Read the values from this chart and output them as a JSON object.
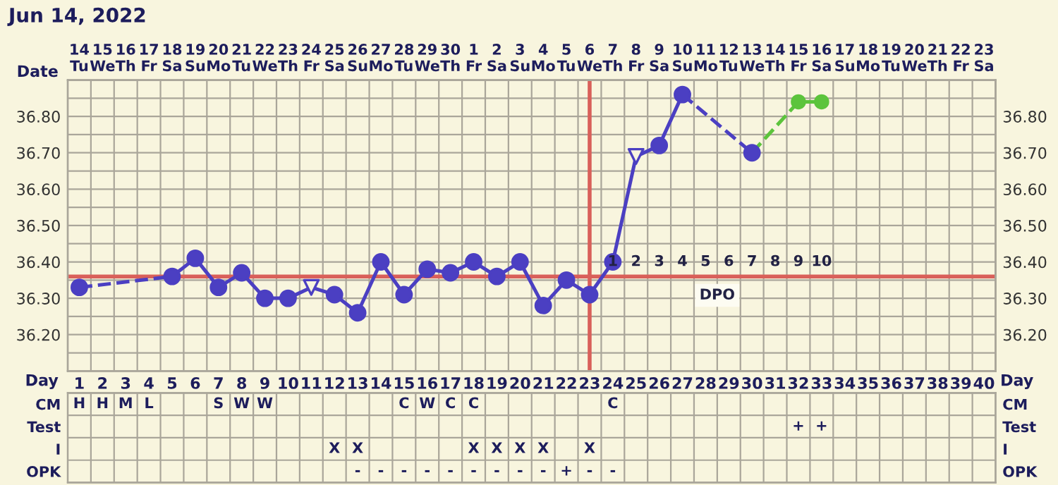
{
  "chart_data": [
    {
      "type": "line",
      "title": "Jun 14, 2022",
      "xlabel": "Day",
      "x2label": "Date",
      "grid": true,
      "legend": false,
      "xlim": [
        0.5,
        40.5
      ],
      "xticks": [
        1,
        2,
        3,
        4,
        5,
        6,
        7,
        8,
        9,
        10,
        11,
        12,
        13,
        14,
        15,
        16,
        17,
        18,
        19,
        20,
        21,
        22,
        23,
        24,
        25,
        26,
        27,
        28,
        29,
        30,
        31,
        32,
        33,
        34,
        35,
        36,
        37,
        38,
        39,
        40
      ],
      "x2lim": [
        "2022-06-13T12:00",
        "2022-07-23T12:00"
      ],
      "x2ticks": [
        {
          "value": "2022-06-14",
          "label": "14\nTu"
        },
        {
          "value": "2022-06-15",
          "label": "15\nWe"
        },
        {
          "value": "2022-06-16",
          "label": "16\nTh"
        },
        {
          "value": "2022-06-17",
          "label": "17\nFr"
        },
        {
          "value": "2022-06-18",
          "label": "18\nSa"
        },
        {
          "value": "2022-06-19",
          "label": "19\nSu"
        },
        {
          "value": "2022-06-20",
          "label": "20\nMo"
        },
        {
          "value": "2022-06-21",
          "label": "21\nTu"
        },
        {
          "value": "2022-06-22",
          "label": "22\nWe"
        },
        {
          "value": "2022-06-23",
          "label": "23\nTh"
        },
        {
          "value": "2022-06-24",
          "label": "24\nFr"
        },
        {
          "value": "2022-06-25",
          "label": "25\nSa"
        },
        {
          "value": "2022-06-26",
          "label": "26\nSu"
        },
        {
          "value": "2022-06-27",
          "label": "27\nMo"
        },
        {
          "value": "2022-06-28",
          "label": "28\nTu"
        },
        {
          "value": "2022-06-29",
          "label": "29\nWe"
        },
        {
          "value": "2022-06-30",
          "label": "30\nTh"
        },
        {
          "value": "2022-07-01",
          "label": "1\nFr"
        },
        {
          "value": "2022-07-02",
          "label": "2\nSa"
        },
        {
          "value": "2022-07-03",
          "label": "3\nSu"
        },
        {
          "value": "2022-07-04",
          "label": "4\nMo"
        },
        {
          "value": "2022-07-05",
          "label": "5\nTu"
        },
        {
          "value": "2022-07-06",
          "label": "6\nWe"
        },
        {
          "value": "2022-07-07",
          "label": "7\nTh"
        },
        {
          "value": "2022-07-08",
          "label": "8\nFr"
        },
        {
          "value": "2022-07-09",
          "label": "9\nSa"
        },
        {
          "value": "2022-07-10",
          "label": "10\nSu"
        },
        {
          "value": "2022-07-11",
          "label": "11\nMo"
        },
        {
          "value": "2022-07-12",
          "label": "12\nTu"
        },
        {
          "value": "2022-07-13",
          "label": "13\nWe"
        },
        {
          "value": "2022-07-14",
          "label": "14\nTh"
        },
        {
          "value": "2022-07-15",
          "label": "15\nFr"
        },
        {
          "value": "2022-07-16",
          "label": "16\nSa"
        },
        {
          "value": "2022-07-17",
          "label": "17\nSu"
        },
        {
          "value": "2022-07-18",
          "label": "18\nMo"
        },
        {
          "value": "2022-07-19",
          "label": "19\nTu"
        },
        {
          "value": "2022-07-20",
          "label": "20\nWe"
        },
        {
          "value": "2022-07-21",
          "label": "21\nTh"
        },
        {
          "value": "2022-07-22",
          "label": "22\nFr"
        },
        {
          "value": "2022-07-23",
          "label": "23\nSa"
        }
      ],
      "ylim": [
        36.1,
        36.9
      ],
      "yticks": [
        {
          "value": 36.1,
          "label": null
        },
        {
          "value": 36.15,
          "label": null
        },
        {
          "value": 36.2,
          "label": "36.20"
        },
        {
          "value": 36.25,
          "label": null
        },
        {
          "value": 36.3,
          "label": "36.30"
        },
        {
          "value": 36.35,
          "label": null
        },
        {
          "value": 36.4,
          "label": "36.40"
        },
        {
          "value": 36.45,
          "label": null
        },
        {
          "value": 36.5,
          "label": "36.50"
        },
        {
          "value": 36.55,
          "label": null
        },
        {
          "value": 36.6,
          "label": "36.60"
        },
        {
          "value": 36.65,
          "label": null
        },
        {
          "value": 36.7,
          "label": "36.70"
        },
        {
          "value": 36.75,
          "label": null
        },
        {
          "value": 36.8,
          "label": "36.80"
        },
        {
          "value": 36.85,
          "label": null
        },
        {
          "value": 36.9,
          "label": null
        }
      ],
      "y2lim": [
        36.1,
        36.9
      ],
      "y2ticks": [
        {
          "value": 36.1,
          "label": null
        },
        {
          "value": 36.15,
          "label": null
        },
        {
          "value": 36.2,
          "label": "36.20"
        },
        {
          "value": 36.25,
          "label": null
        },
        {
          "value": 36.3,
          "label": "36.30"
        },
        {
          "value": 36.35,
          "label": null
        },
        {
          "value": 36.4,
          "label": "36.40"
        },
        {
          "value": 36.45,
          "label": null
        },
        {
          "value": 36.5,
          "label": "36.50"
        },
        {
          "value": 36.55,
          "label": null
        },
        {
          "value": 36.6,
          "label": "36.60"
        },
        {
          "value": 36.65,
          "label": null
        },
        {
          "value": 36.7,
          "label": "36.70"
        },
        {
          "value": 36.75,
          "label": null
        },
        {
          "value": 36.8,
          "label": "36.80"
        },
        {
          "value": 36.85,
          "label": null
        },
        {
          "value": 36.9,
          "label": null
        }
      ],
      "series": [
        {
          "type": "line",
          "color": "#4b3fc2",
          "line_style": "dashed",
          "x": [
            1,
            5
          ],
          "values": [
            36.33,
            36.36
          ]
        },
        {
          "type": "line",
          "color": "#4b3fc2",
          "line_style": "solid",
          "x": [
            5,
            6,
            7,
            8,
            9,
            10,
            11,
            12,
            13,
            14,
            15,
            16,
            17,
            18,
            19,
            20,
            21,
            22,
            23,
            24,
            25,
            26,
            27
          ],
          "values": [
            36.36,
            36.41,
            36.33,
            36.37,
            36.3,
            36.3,
            36.33,
            36.31,
            36.26,
            36.4,
            36.31,
            36.38,
            36.37,
            36.4,
            36.36,
            36.4,
            36.28,
            36.35,
            36.31,
            36.4,
            36.69,
            36.72,
            36.86
          ]
        },
        {
          "type": "line",
          "color": "#4b3fc2",
          "line_style": "dashed",
          "x": [
            27,
            30
          ],
          "values": [
            36.86,
            36.7
          ]
        },
        {
          "type": "line",
          "color": "#5cc43c",
          "line_style": "dashed",
          "x": [
            30,
            32
          ],
          "values": [
            36.7,
            36.84
          ]
        },
        {
          "type": "line",
          "color": "#5cc43c",
          "line_style": "solid",
          "marker": "circle",
          "x": [
            32,
            33
          ],
          "values": [
            36.84,
            36.84
          ]
        },
        {
          "type": "scatter",
          "color": "#4b3fc2",
          "marker": "circle",
          "x": [
            1,
            5,
            6,
            7,
            8,
            9,
            10,
            12,
            13,
            14,
            15,
            16,
            17,
            18,
            19,
            20,
            21,
            22,
            23,
            24,
            26,
            27,
            30
          ],
          "values": [
            36.33,
            36.36,
            36.41,
            36.33,
            36.37,
            36.3,
            36.3,
            36.31,
            36.26,
            36.4,
            36.31,
            36.38,
            36.37,
            36.4,
            36.36,
            36.4,
            36.28,
            36.35,
            36.31,
            36.4,
            36.72,
            36.86,
            36.7
          ]
        },
        {
          "type": "scatter",
          "color": "#4b3fc2",
          "marker": "triangle",
          "x": [
            11,
            25
          ],
          "values": [
            36.33,
            36.69
          ]
        }
      ],
      "ref_lines": [
        {
          "axis": "y",
          "value": 36.36,
          "color": "#d9605a"
        },
        {
          "axis": "x",
          "value": 23,
          "color": "#d9605a"
        }
      ],
      "annotations": [
        "1",
        "2",
        "3",
        "4",
        "5",
        "6",
        "7",
        "8",
        "9",
        "10",
        "DPO"
      ]
    },
    {
      "type": "heatmap",
      "categories": [
        null,
        null,
        null,
        null,
        null,
        null,
        null,
        null,
        null,
        null,
        null,
        null,
        null,
        null,
        null,
        null,
        null,
        null,
        null,
        null,
        null,
        null,
        null,
        null,
        null,
        null,
        null,
        null,
        null,
        null,
        null,
        null,
        null,
        null,
        null,
        null,
        null,
        null,
        null,
        null
      ],
      "y_categories": [
        "CM",
        "Test",
        "I",
        "OPK"
      ],
      "y2_categories": [
        "CM",
        "Test",
        "I",
        "OPK"
      ],
      "cells": [
        [
          null,
          null,
          null,
          null,
          null,
          null,
          null,
          null,
          null,
          null,
          null,
          null,
          null,
          null,
          null,
          null,
          null,
          null,
          null,
          null,
          null,
          null,
          null,
          null,
          null,
          null,
          null,
          null,
          null,
          null,
          null,
          null,
          null,
          null,
          null,
          null,
          null,
          null,
          null,
          null
        ],
        [
          null,
          null,
          null,
          null,
          null,
          null,
          null,
          null,
          null,
          null,
          null,
          null,
          null,
          null,
          null,
          null,
          null,
          null,
          null,
          null,
          null,
          null,
          null,
          null,
          null,
          null,
          null,
          null,
          null,
          null,
          null,
          null,
          null,
          null,
          null,
          null,
          null,
          null,
          null,
          null
        ],
        [
          null,
          null,
          null,
          null,
          null,
          null,
          null,
          null,
          null,
          null,
          null,
          null,
          null,
          null,
          null,
          null,
          null,
          null,
          null,
          null,
          null,
          null,
          null,
          null,
          null,
          null,
          null,
          null,
          null,
          null,
          null,
          null,
          null,
          null,
          null,
          null,
          null,
          null,
          null,
          null
        ],
        [
          null,
          null,
          null,
          null,
          null,
          null,
          null,
          null,
          null,
          null,
          null,
          null,
          null,
          null,
          null,
          null,
          null,
          null,
          null,
          null,
          null,
          null,
          null,
          null,
          null,
          null,
          null,
          null,
          null,
          null,
          null,
          null,
          null,
          null,
          null,
          null,
          null,
          null,
          null,
          null
        ]
      ],
      "cell_labels": [
        [
          "H",
          "H",
          "M",
          "L",
          null,
          null,
          "S",
          "W",
          "W",
          null,
          null,
          null,
          null,
          null,
          "C",
          "W",
          "C",
          "C",
          null,
          null,
          null,
          null,
          null,
          "C",
          null,
          null,
          null,
          null,
          null,
          null,
          null,
          null,
          null,
          null,
          null,
          null,
          null,
          null,
          null,
          null
        ],
        [
          null,
          null,
          null,
          null,
          null,
          null,
          null,
          null,
          null,
          null,
          null,
          null,
          null,
          null,
          null,
          null,
          null,
          null,
          null,
          null,
          null,
          null,
          null,
          null,
          null,
          null,
          null,
          null,
          null,
          null,
          null,
          "+",
          "+",
          null,
          null,
          null,
          null,
          null,
          null,
          null
        ],
        [
          null,
          null,
          null,
          null,
          null,
          null,
          null,
          null,
          null,
          null,
          null,
          "X",
          "X",
          null,
          null,
          null,
          null,
          "X",
          "X",
          "X",
          "X",
          null,
          "X",
          null,
          null,
          null,
          null,
          null,
          null,
          null,
          null,
          null,
          null,
          null,
          null,
          null,
          null,
          null,
          null,
          null
        ],
        [
          null,
          null,
          null,
          null,
          null,
          null,
          null,
          null,
          null,
          null,
          null,
          null,
          "-",
          "-",
          "-",
          "-",
          "-",
          "-",
          "-",
          "-",
          "-",
          "+",
          "-",
          "-",
          null,
          null,
          null,
          null,
          null,
          null,
          null,
          null,
          null,
          null,
          null,
          null,
          null,
          null,
          null,
          null
        ]
      ]
    }
  ]
}
